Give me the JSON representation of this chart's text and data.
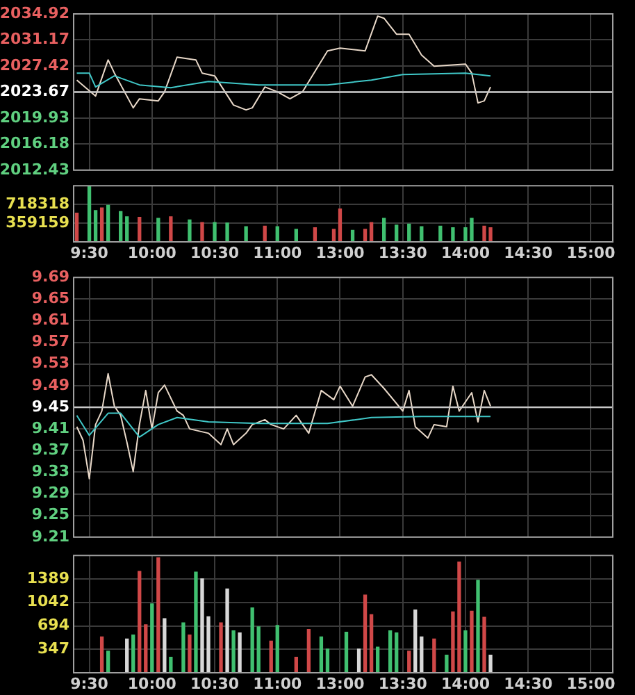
{
  "chart_data": [
    {
      "type": "line",
      "categories": [
        null,
        null,
        null,
        null,
        null,
        null,
        null,
        null,
        null,
        null,
        null,
        null,
        null,
        null,
        null,
        null,
        null,
        null,
        null,
        null,
        null,
        null,
        null,
        null,
        null,
        null,
        null,
        null,
        null,
        null,
        null,
        null,
        null,
        null,
        null,
        null,
        null,
        null,
        null,
        null,
        null,
        null,
        null,
        null,
        null,
        null,
        null,
        null,
        null,
        null,
        null,
        null,
        null,
        null,
        null,
        null,
        null,
        null,
        null,
        null,
        null,
        null,
        null,
        null,
        null,
        null,
        null,
        null,
        null,
        null,
        null,
        null,
        null,
        null,
        null,
        null,
        null,
        null,
        null,
        null,
        null,
        null,
        null,
        null,
        null,
        null
      ],
      "ylim": [
        2012.43,
        2034.92
      ],
      "yticks": [
        2012.43,
        2016.18,
        2019.93,
        2023.67,
        2027.42,
        2031.17,
        2034.92
      ],
      "grid": true,
      "tick_labels": "y",
      "ref_lines": [
        {
          "axis": "y",
          "value": 2023.67,
          "color": "#c8c8c8"
        }
      ],
      "series": [
        {
          "color": "#40c8c8",
          "values": [
            2026.4,
            null,
            2026.4,
            2024.4,
            null,
            null,
            2026.0,
            null,
            null,
            null,
            2024.7,
            null,
            null,
            null,
            null,
            2024.3,
            null,
            null,
            null,
            null,
            null,
            2025.2,
            null,
            null,
            null,
            null,
            null,
            null,
            null,
            2024.7,
            null,
            null,
            null,
            null,
            null,
            null,
            null,
            null,
            null,
            null,
            2024.7,
            null,
            null,
            null,
            null,
            null,
            null,
            2025.4,
            null,
            null,
            null,
            null,
            2026.2,
            null,
            null,
            null,
            null,
            null,
            null,
            null,
            null,
            null,
            2026.4,
            null,
            null,
            null,
            2026.0,
            null,
            null,
            null,
            null,
            null,
            null,
            null,
            null,
            null,
            null,
            null,
            null,
            null,
            null,
            null,
            null,
            null,
            null,
            null
          ]
        },
        {
          "color": "#e8d8c8",
          "values": [
            2025.4,
            null,
            null,
            2023.1,
            null,
            2028.3,
            2026.4,
            null,
            null,
            2021.4,
            2022.7,
            null,
            null,
            2022.4,
            2023.7,
            null,
            2028.7,
            null,
            null,
            2028.3,
            2026.4,
            null,
            2026.0,
            null,
            null,
            2021.8,
            null,
            2021.1,
            2021.4,
            null,
            2024.4,
            null,
            2023.7,
            null,
            2022.7,
            null,
            2023.7,
            null,
            null,
            null,
            2029.6,
            null,
            2030.0,
            null,
            null,
            null,
            2029.6,
            null,
            2034.6,
            2034.3,
            null,
            2032.0,
            null,
            2032.0,
            null,
            2029.0,
            null,
            2027.4,
            null,
            null,
            null,
            null,
            2027.7,
            2026.4,
            2022.1,
            2022.4,
            2024.4,
            null,
            null,
            null,
            null,
            null,
            null,
            null,
            null,
            null,
            null,
            null,
            null,
            null,
            null,
            null,
            null,
            null,
            null,
            null
          ]
        }
      ]
    },
    {
      "type": "bar",
      "categories": [
        null,
        null,
        "9:30",
        null,
        null,
        null,
        null,
        null,
        null,
        null,
        null,
        null,
        "10:00",
        null,
        null,
        null,
        null,
        null,
        null,
        null,
        null,
        null,
        "10:30",
        null,
        null,
        null,
        null,
        null,
        null,
        null,
        null,
        null,
        "11:00",
        null,
        null,
        null,
        null,
        null,
        null,
        null,
        null,
        null,
        "13:00",
        null,
        null,
        null,
        null,
        null,
        null,
        null,
        null,
        null,
        "13:30",
        null,
        null,
        null,
        null,
        null,
        null,
        null,
        null,
        null,
        "14:00",
        null,
        null,
        null,
        null,
        null,
        null,
        null,
        null,
        null,
        "14:30",
        null,
        null,
        null,
        null,
        null,
        null,
        null,
        null,
        null,
        "15:00",
        null,
        null,
        null
      ],
      "ylim": [
        0,
        1077477
      ],
      "yticks": [
        359159,
        718318
      ],
      "grid": true,
      "values": [
        550000,
        null,
        1060000,
        600000,
        650000,
        700000,
        null,
        580000,
        480000,
        null,
        470000,
        null,
        null,
        450000,
        null,
        480000,
        null,
        null,
        420000,
        null,
        370000,
        null,
        370000,
        null,
        360000,
        null,
        null,
        290000,
        null,
        null,
        300000,
        null,
        290000,
        null,
        null,
        240000,
        null,
        null,
        270000,
        null,
        null,
        240000,
        630000,
        null,
        220000,
        null,
        240000,
        370000,
        null,
        450000,
        null,
        320000,
        null,
        340000,
        null,
        290000,
        null,
        null,
        300000,
        null,
        270000,
        null,
        270000,
        450000,
        null,
        300000,
        270000,
        null,
        null,
        null,
        null,
        null,
        null,
        null,
        null,
        null,
        null,
        null,
        null,
        null,
        null,
        null,
        null,
        null,
        null,
        null
      ],
      "colors": [
        "#d04848",
        null,
        "#40c070",
        "#40c070",
        "#d04848",
        "#40c070",
        null,
        "#40c070",
        "#40c070",
        null,
        "#d04848",
        null,
        null,
        "#40c070",
        null,
        "#d04848",
        null,
        null,
        "#40c070",
        null,
        "#d04848",
        null,
        "#40c070",
        null,
        "#40c070",
        null,
        null,
        "#40c070",
        null,
        null,
        "#d04848",
        null,
        "#40c070",
        null,
        null,
        "#40c070",
        null,
        null,
        "#d04848",
        null,
        null,
        "#d04848",
        "#d04848",
        null,
        "#40c070",
        null,
        "#d04848",
        "#d04848",
        null,
        "#40c070",
        null,
        "#40c070",
        null,
        "#40c070",
        null,
        "#40c070",
        null,
        null,
        "#40c070",
        null,
        "#40c070",
        null,
        "#40c070",
        "#40c070",
        null,
        "#d04848",
        "#d04848",
        null,
        null,
        null,
        null,
        null,
        null,
        null,
        null,
        null,
        null,
        null,
        null,
        null,
        null,
        null,
        null,
        null,
        null,
        null
      ]
    },
    {
      "type": "line",
      "categories": [
        null,
        null,
        null,
        null,
        null,
        null,
        null,
        null,
        null,
        null,
        null,
        null,
        null,
        null,
        null,
        null,
        null,
        null,
        null,
        null,
        null,
        null,
        null,
        null,
        null,
        null,
        null,
        null,
        null,
        null,
        null,
        null,
        null,
        null,
        null,
        null,
        null,
        null,
        null,
        null,
        null,
        null,
        null,
        null,
        null,
        null,
        null,
        null,
        null,
        null,
        null,
        null,
        null,
        null,
        null,
        null,
        null,
        null,
        null,
        null,
        null,
        null,
        null,
        null,
        null,
        null,
        null,
        null,
        null,
        null,
        null,
        null,
        null,
        null,
        null,
        null,
        null,
        null,
        null,
        null,
        null,
        null,
        null,
        null,
        null,
        null
      ],
      "ylim": [
        9.21,
        9.69
      ],
      "yticks": [
        9.21,
        9.25,
        9.29,
        9.33,
        9.37,
        9.41,
        9.45,
        9.49,
        9.53,
        9.57,
        9.61,
        9.65,
        9.69
      ],
      "grid": true,
      "tick_labels": "y",
      "ref_lines": [
        {
          "axis": "y",
          "value": 9.45,
          "color": "#c8c8c8"
        }
      ],
      "series": [
        {
          "color": "#40c8c8",
          "values": [
            9.435,
            null,
            9.398,
            null,
            null,
            9.439,
            null,
            9.439,
            null,
            null,
            9.395,
            null,
            null,
            9.418,
            null,
            null,
            9.431,
            null,
            null,
            null,
            null,
            9.423,
            null,
            null,
            null,
            null,
            null,
            null,
            null,
            9.42,
            null,
            null,
            null,
            null,
            null,
            null,
            null,
            null,
            null,
            null,
            9.42,
            null,
            null,
            null,
            null,
            null,
            null,
            9.431,
            null,
            null,
            null,
            null,
            null,
            null,
            null,
            9.433,
            null,
            null,
            null,
            null,
            null,
            null,
            null,
            null,
            null,
            null,
            9.433,
            null,
            null,
            null,
            null,
            null,
            null,
            null,
            null,
            null,
            null,
            null,
            null,
            null,
            null,
            null,
            null,
            null,
            null,
            null
          ]
        },
        {
          "color": "#e8d8c8",
          "values": [
            9.414,
            9.389,
            9.318,
            9.418,
            9.443,
            9.512,
            9.452,
            9.435,
            9.385,
            9.331,
            9.418,
            9.481,
            9.41,
            9.477,
            9.491,
            null,
            9.443,
            9.435,
            9.41,
            null,
            null,
            9.402,
            null,
            9.381,
            9.41,
            9.381,
            null,
            9.402,
            9.418,
            null,
            9.427,
            9.418,
            null,
            9.41,
            null,
            9.435,
            null,
            9.402,
            null,
            9.481,
            null,
            9.464,
            9.489,
            null,
            9.452,
            null,
            9.506,
            9.51,
            null,
            9.485,
            null,
            null,
            9.443,
            9.481,
            9.414,
            null,
            9.393,
            9.418,
            null,
            9.414,
            9.489,
            9.443,
            null,
            9.477,
            9.423,
            9.481,
            9.452,
            null,
            null,
            null,
            null,
            null,
            null,
            null,
            null,
            null,
            null,
            null,
            null,
            null,
            null,
            null,
            null,
            null,
            null,
            null
          ]
        }
      ]
    },
    {
      "type": "bar",
      "categories": [
        null,
        null,
        "9:30",
        null,
        null,
        null,
        null,
        null,
        null,
        null,
        null,
        null,
        "10:00",
        null,
        null,
        null,
        null,
        null,
        null,
        null,
        null,
        null,
        "10:30",
        null,
        null,
        null,
        null,
        null,
        null,
        null,
        null,
        null,
        "11:00",
        null,
        null,
        null,
        null,
        null,
        null,
        null,
        null,
        null,
        "13:00",
        null,
        null,
        null,
        null,
        null,
        null,
        null,
        null,
        null,
        "13:30",
        null,
        null,
        null,
        null,
        null,
        null,
        null,
        null,
        null,
        "14:00",
        null,
        null,
        null,
        null,
        null,
        null,
        null,
        null,
        null,
        "14:30",
        null,
        null,
        null,
        null,
        null,
        null,
        null,
        null,
        null,
        "15:00",
        null,
        null,
        null
      ],
      "ylim": [
        0,
        1736
      ],
      "yticks": [
        347,
        694,
        1042,
        1389
      ],
      "grid": true,
      "values": [
        null,
        null,
        null,
        null,
        530,
        320,
        null,
        null,
        500,
        560,
        1500,
        710,
        1020,
        1700,
        800,
        230,
        null,
        740,
        560,
        1490,
        1390,
        830,
        null,
        740,
        1240,
        620,
        590,
        null,
        960,
        680,
        null,
        470,
        700,
        null,
        null,
        230,
        null,
        640,
        null,
        530,
        350,
        null,
        null,
        600,
        null,
        350,
        1150,
        860,
        380,
        null,
        620,
        590,
        null,
        320,
        930,
        530,
        null,
        500,
        null,
        260,
        900,
        1640,
        620,
        910,
        1370,
        820,
        260,
        null,
        null,
        null,
        null,
        null,
        null,
        null,
        null,
        null,
        null,
        null,
        null,
        null,
        null,
        null,
        null,
        null,
        null,
        null
      ],
      "colors": [
        null,
        null,
        null,
        null,
        "#d04848",
        "#40c070",
        null,
        null,
        "#d8d8d8",
        "#40c070",
        "#d04848",
        "#d04848",
        "#40c070",
        "#d04848",
        "#d8d8d8",
        "#40c070",
        null,
        "#40c070",
        "#d04848",
        "#40c070",
        "#d8d8d8",
        "#d8d8d8",
        null,
        "#d04848",
        "#d8d8d8",
        "#40c070",
        "#d8d8d8",
        null,
        "#40c070",
        "#40c070",
        null,
        "#d04848",
        "#40c070",
        null,
        null,
        "#d04848",
        null,
        "#d04848",
        null,
        "#40c070",
        "#40c070",
        null,
        null,
        "#40c070",
        null,
        "#d8d8d8",
        "#d04848",
        "#d04848",
        "#40c070",
        null,
        "#40c070",
        "#40c070",
        null,
        "#d04848",
        "#d8d8d8",
        "#d8d8d8",
        null,
        "#d04848",
        null,
        "#40c070",
        "#d04848",
        "#d04848",
        "#40c070",
        "#d04848",
        "#40c070",
        "#d04848",
        "#d8d8d8",
        null,
        null,
        null,
        null,
        null,
        null,
        null,
        null,
        null,
        null,
        null,
        null,
        null,
        null,
        null,
        null,
        null,
        null,
        null
      ]
    }
  ]
}
